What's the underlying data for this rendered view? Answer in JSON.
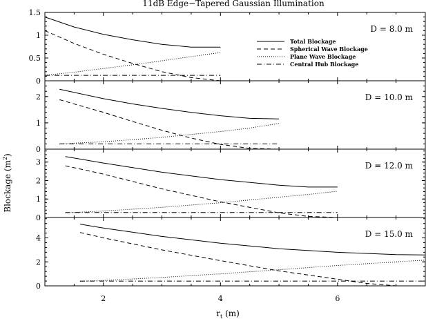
{
  "chart_data": {
    "type": "line",
    "title": "11dB Edge−Tapered Gaussian Illumination",
    "xlabel_main": "r",
    "xlabel_sub": "t",
    "xlabel_unit": " (m)",
    "ylabel_main": "Blockage (m",
    "ylabel_sup": "2",
    "ylabel_end": ")",
    "xlim": [
      1.0,
      7.5
    ],
    "xticks": [
      2,
      4,
      6
    ],
    "grid": false,
    "legend_position": "top-right of first panel",
    "legend": [
      {
        "name": "Total Blockage",
        "dash": "solid"
      },
      {
        "name": "Spherical Wave Blockage",
        "dash": "dashed"
      },
      {
        "name": "Plane Wave Blockage",
        "dash": "dotted"
      },
      {
        "name": "Central Hub Blockage",
        "dash": "dashdot"
      }
    ],
    "panels": [
      {
        "label": "D = 8.0 m",
        "ylim": [
          0,
          1.5
        ],
        "yticks": [
          "0",
          "0.5",
          "1",
          "1.5"
        ],
        "ytick_values": [
          0,
          0.5,
          1,
          1.5
        ],
        "series": [
          {
            "name": "Total Blockage",
            "x": [
              1.0,
              1.5,
              2.0,
              2.5,
              3.0,
              3.5,
              4.0
            ],
            "y": [
              1.4,
              1.18,
              1.02,
              0.9,
              0.8,
              0.74,
              0.74
            ]
          },
          {
            "name": "Spherical Wave Blockage",
            "x": [
              1.0,
              1.5,
              2.0,
              2.5,
              3.0,
              3.5,
              4.0
            ],
            "y": [
              1.1,
              0.82,
              0.58,
              0.38,
              0.2,
              0.07,
              0.0
            ]
          },
          {
            "name": "Plane Wave Blockage",
            "x": [
              1.0,
              1.5,
              2.0,
              2.5,
              3.0,
              3.5,
              4.0
            ],
            "y": [
              0.12,
              0.19,
              0.27,
              0.35,
              0.44,
              0.53,
              0.62
            ]
          },
          {
            "name": "Central Hub Blockage",
            "x": [
              1.0,
              4.0
            ],
            "y": [
              0.12,
              0.12
            ]
          }
        ]
      },
      {
        "label": "D = 10.0 m",
        "ylim": [
          0,
          2.6
        ],
        "yticks": [
          "0",
          "1",
          "2"
        ],
        "ytick_values": [
          0,
          1,
          2
        ],
        "series": [
          {
            "name": "Total Blockage",
            "x": [
              1.25,
              2.0,
              2.5,
              3.0,
              3.5,
              4.0,
              4.5,
              5.0
            ],
            "y": [
              2.28,
              1.92,
              1.72,
              1.55,
              1.4,
              1.27,
              1.17,
              1.15
            ]
          },
          {
            "name": "Spherical Wave Blockage",
            "x": [
              1.25,
              2.0,
              2.5,
              3.0,
              3.5,
              4.0,
              4.5,
              5.0
            ],
            "y": [
              1.88,
              1.4,
              1.05,
              0.72,
              0.42,
              0.18,
              0.03,
              0.0
            ]
          },
          {
            "name": "Plane Wave Blockage",
            "x": [
              1.25,
              2.0,
              2.5,
              3.0,
              3.5,
              4.0,
              4.5,
              5.0
            ],
            "y": [
              0.2,
              0.28,
              0.36,
              0.45,
              0.56,
              0.67,
              0.8,
              0.98
            ]
          },
          {
            "name": "Central Hub Blockage",
            "x": [
              1.25,
              5.0
            ],
            "y": [
              0.2,
              0.2
            ]
          }
        ]
      },
      {
        "label": "D = 12.0 m",
        "ylim": [
          0,
          3.7
        ],
        "yticks": [
          "0",
          "1",
          "2",
          "3"
        ],
        "ytick_values": [
          0,
          1,
          2,
          3
        ],
        "series": [
          {
            "name": "Total Blockage",
            "x": [
              1.35,
              2.0,
              3.0,
              4.0,
              5.0,
              5.5,
              6.0
            ],
            "y": [
              3.3,
              2.95,
              2.45,
              2.05,
              1.75,
              1.65,
              1.65
            ]
          },
          {
            "name": "Spherical Wave Blockage",
            "x": [
              1.35,
              2.0,
              3.0,
              4.0,
              5.0,
              5.5,
              6.0
            ],
            "y": [
              2.8,
              2.35,
              1.55,
              0.85,
              0.25,
              0.06,
              0.0
            ]
          },
          {
            "name": "Plane Wave Blockage",
            "x": [
              1.35,
              2.0,
              3.0,
              4.0,
              5.0,
              5.5,
              6.0
            ],
            "y": [
              0.25,
              0.35,
              0.55,
              0.8,
              1.1,
              1.25,
              1.42
            ]
          },
          {
            "name": "Central Hub Blockage",
            "x": [
              1.35,
              6.0
            ],
            "y": [
              0.27,
              0.27
            ]
          }
        ]
      },
      {
        "label": "D = 15.0 m",
        "ylim": [
          0,
          5.7
        ],
        "yticks": [
          "0",
          "2",
          "4"
        ],
        "ytick_values": [
          0,
          2,
          4
        ],
        "series": [
          {
            "name": "Total Blockage",
            "x": [
              1.6,
              2.0,
              3.0,
              4.0,
              5.0,
              6.0,
              7.0,
              7.5
            ],
            "y": [
              5.15,
              4.82,
              4.12,
              3.55,
              3.1,
              2.8,
              2.6,
              2.58
            ]
          },
          {
            "name": "Spherical Wave Blockage",
            "x": [
              1.6,
              2.0,
              3.0,
              4.0,
              5.0,
              6.0,
              6.5,
              7.0
            ],
            "y": [
              4.45,
              4.0,
              3.0,
              2.1,
              1.25,
              0.55,
              0.2,
              0.0
            ]
          },
          {
            "name": "Plane Wave Blockage",
            "x": [
              1.6,
              2.0,
              3.0,
              4.0,
              5.0,
              6.0,
              7.0,
              7.5
            ],
            "y": [
              0.38,
              0.45,
              0.7,
              1.0,
              1.35,
              1.7,
              2.0,
              2.15
            ]
          },
          {
            "name": "Central Hub Blockage",
            "x": [
              1.6,
              7.5
            ],
            "y": [
              0.4,
              0.4
            ]
          }
        ]
      }
    ]
  }
}
